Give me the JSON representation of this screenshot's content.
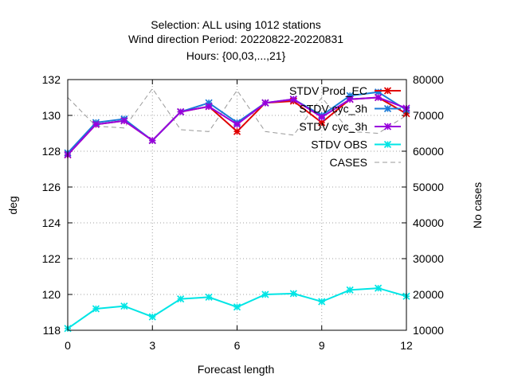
{
  "chart_data": {
    "type": "line",
    "title_lines": [
      "Selection: ALL using  1012 stations",
      "Wind direction   Period: 20220822-20220831",
      "Hours: {00,03,...,21}"
    ],
    "xlabel": "Forecast length",
    "ylabel": "deg",
    "y2label": "No cases",
    "xlim": [
      0,
      12
    ],
    "ylim": [
      118,
      132
    ],
    "y2lim": [
      10000,
      80000
    ],
    "x_ticks": [
      0,
      3,
      6,
      9,
      12
    ],
    "y_ticks": [
      118,
      120,
      122,
      124,
      126,
      128,
      130,
      132
    ],
    "y2_ticks": [
      10000,
      20000,
      30000,
      40000,
      50000,
      60000,
      70000,
      80000
    ],
    "grid": true,
    "legend_position": "top-right",
    "x": [
      0,
      1,
      2,
      3,
      4,
      5,
      6,
      7,
      8,
      9,
      10,
      11,
      12
    ],
    "series": [
      {
        "name": "STDV Prod_EC",
        "color": "#e00000",
        "axis": "y",
        "marker": "x",
        "values": [
          127.8,
          129.5,
          129.7,
          128.6,
          130.2,
          130.5,
          129.1,
          130.7,
          130.8,
          129.6,
          130.9,
          131.0,
          130.1
        ]
      },
      {
        "name": "STDV cyc_3h",
        "color": "#1a7bd8",
        "axis": "y",
        "marker": "x",
        "values": [
          127.9,
          129.6,
          129.8,
          128.6,
          130.2,
          130.7,
          129.6,
          130.7,
          130.9,
          130.0,
          131.1,
          131.3,
          130.3
        ]
      },
      {
        "name": "STDV cyc_3h",
        "color": "#9900dd",
        "axis": "y",
        "marker": "x",
        "values": [
          127.8,
          129.5,
          129.7,
          128.6,
          130.2,
          130.5,
          129.5,
          130.7,
          130.9,
          129.9,
          130.9,
          131.0,
          130.4
        ]
      },
      {
        "name": "STDV OBS",
        "color": "#00e5e5",
        "axis": "y",
        "marker": "x",
        "values": [
          118.1,
          119.2,
          119.35,
          118.75,
          119.75,
          119.85,
          119.3,
          120.0,
          120.05,
          119.6,
          120.25,
          120.35,
          119.9
        ]
      },
      {
        "name": "CASES",
        "color": "#999999",
        "axis": "y2",
        "dashed": true,
        "values": [
          75000,
          67000,
          66500,
          77500,
          66000,
          65500,
          77000,
          65500,
          64500,
          75000,
          65500,
          65000,
          70000
        ]
      }
    ]
  }
}
